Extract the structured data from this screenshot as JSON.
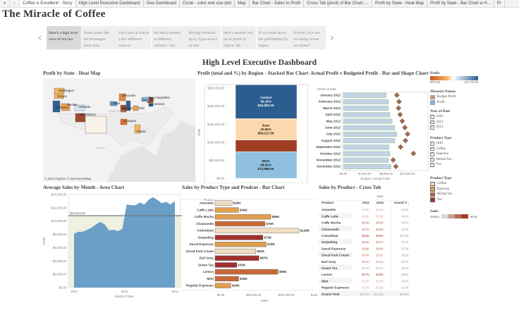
{
  "tabs": [
    "Coffee is Excellent! - Story",
    "High Level Executive Dashboard",
    "Geo Dashboard",
    "Circle - color and size plot",
    "Map",
    "Bar Chart - Sales to Profit",
    "Cross Tab (pivot) of Bar Chart -...",
    "Profit by State - Heat Map",
    "Profit by State - Bar Chart w H...",
    "Pr"
  ],
  "story_title": "The Miracle of Coffee",
  "story_points": [
    "Here's a high level view of our hot",
    "Some states like hot beverages more than",
    "Let's look at that in a few different ways to",
    "We sell a number of different varieties - but",
    "Rolling Products up by Type  shows us that",
    "Here's another roll up of profit by region. We",
    "If we break down the profitability by region",
    "Overall, how are we doing verses our plans?"
  ],
  "dashboard_title": "High Level Executive Dashboard",
  "map": {
    "title": "Profit by State - Heat Map",
    "attribution": "© 2025 Mapbox  © OpenStreetMap",
    "country_labels": [
      "United States",
      "Mexico"
    ],
    "states": [
      {
        "name": "Washington",
        "color": "#f5b560"
      },
      {
        "name": "Oregon",
        "color": "#f5b560"
      },
      {
        "name": "California",
        "color": "#2e5f8f"
      },
      {
        "name": "Nevada",
        "color": "#f0a050"
      },
      {
        "name": "Colorado",
        "color": "#d6e8f5"
      },
      {
        "name": "New Mexico",
        "color": "#a04a30"
      },
      {
        "name": "Iowa",
        "color": "#5f95c8"
      },
      {
        "name": "Wisconsin",
        "color": "#e08a40"
      },
      {
        "name": "Missouri",
        "color": "#a04a30"
      },
      {
        "name": "Illinois",
        "color": "#2e5f8f"
      },
      {
        "name": "Ohio",
        "color": "#f0a050"
      },
      {
        "name": "Louisiana",
        "color": "#e07030"
      },
      {
        "name": "Florida",
        "color": "#f5b560"
      },
      {
        "name": "Texas",
        "color": "#faf1e8"
      },
      {
        "name": "New Hampshire",
        "color": "#a04a30"
      },
      {
        "name": "New York",
        "color": "#8fbde0"
      },
      {
        "name": "Connecticut",
        "color": "#2e5f8f"
      }
    ]
  },
  "legends": {
    "profit": {
      "title": "Profit",
      "min": "$799.00",
      "max": "$31,785.00"
    },
    "measure_names": {
      "title": "Measure Names",
      "items": [
        {
          "label": "Budget Profit",
          "color": "#b89a88"
        },
        {
          "label": "Profit",
          "color": "#8aaed4"
        }
      ]
    },
    "year_filter": {
      "title": "Year of Date",
      "items": [
        "(All)",
        "2012",
        "2013"
      ]
    },
    "product_type_filter": {
      "title": "Product Type",
      "items": [
        "(All)",
        "Coffee",
        "Espresso",
        "Herbal Tea",
        "Tea"
      ]
    },
    "product_type_colors": {
      "title": "Product Type",
      "items": [
        {
          "label": "Coffee",
          "color": "#f0dcc0"
        },
        {
          "label": "Espresso",
          "color": "#e0a050"
        },
        {
          "label": "Herbal Tea",
          "color": "#c8693a"
        },
        {
          "label": "Tea",
          "color": "#a0322d"
        }
      ]
    },
    "sales": {
      "title": "Sales",
      "min": "($30K)",
      "max": "$65K"
    }
  },
  "chart_data": [
    {
      "type": "bar",
      "title": "Profit (total and %) by Region - Stacked Bar Chart",
      "ylabel": "Profit",
      "ylim": [
        0,
        260000
      ],
      "yticks": [
        "$0.00",
        "$50,000.00",
        "$100,000.00",
        "$150,000.00",
        "$200,000.00",
        "$250,000.00"
      ],
      "series": [
        {
          "name": "West",
          "value": 73996,
          "pct": "28.51%",
          "label": "$73,996.00",
          "color": "#8fc0df"
        },
        {
          "name": "South",
          "value": 32485,
          "pct": "",
          "label": "",
          "color": "#a03c22"
        },
        {
          "name": "East",
          "value": 59217,
          "pct": "22.82%",
          "label": "$59,217.00",
          "color": "#fdd8ae"
        },
        {
          "name": "Central",
          "value": 93852,
          "pct": "36.16%",
          "label": "$93,852.00",
          "color": "#2b5d8e"
        }
      ]
    },
    {
      "type": "bar",
      "title": "Actual Profit v Budgeted Profit - Bar and Shape Chart",
      "header": "Month of Date",
      "xlabel": "Budget v Actual Profit",
      "xlim": [
        0,
        13500
      ],
      "xticks": [
        "$0.00",
        "$4,000.00",
        "$8,000.00",
        "$12,000.00"
      ],
      "categories": [
        "January 2012",
        "February 2012",
        "March 2012",
        "April 2012",
        "May 2012",
        "June 2012",
        "July 2012",
        "August 2012",
        "September 2012",
        "October 2012",
        "November 2012",
        "December 2012"
      ],
      "series": [
        {
          "name": "Profit",
          "values": [
            8000,
            8400,
            8400,
            8700,
            9100,
            9600,
            10000,
            9600,
            8500,
            8700,
            8400,
            8900
          ]
        },
        {
          "name": "Budget Profit",
          "values": [
            10000,
            10400,
            10300,
            10600,
            11000,
            11500,
            12000,
            11600,
            10700,
            13100,
            9300,
            9800
          ]
        }
      ]
    },
    {
      "type": "area",
      "title": "Average Sales by Month - Area Chart",
      "xlabel": "Month of Date",
      "ylabel": "Profit",
      "ylim": [
        0,
        14000
      ],
      "yticks": [
        "$0.00",
        "$2,000.00",
        "$4,000.00",
        "$6,000.00",
        "$8,000.00",
        "$10,000.00",
        "$12,000.00",
        "$14,000.00"
      ],
      "xticks": [
        "2012",
        "2013",
        "2014"
      ],
      "reference_line": {
        "value": 10814.26,
        "label": "$10,814.26"
      },
      "values": [
        8100,
        8400,
        8400,
        8700,
        9000,
        9500,
        9900,
        9500,
        8600,
        8700,
        8500,
        8800,
        12500,
        12400,
        12400,
        12800,
        12500,
        13200,
        13600,
        13200,
        12700,
        12900,
        12500,
        13000
      ]
    },
    {
      "type": "bar",
      "title": "Sales by Product Type and Prodcut - Bar Chart",
      "header": "Product",
      "xlabel": "Sales",
      "xlim": [
        0,
        155000
      ],
      "xticks": [
        "$0.00",
        "$50,000.00",
        "$100,000.00",
        "$150,000.00"
      ],
      "categories": [
        "Amaretto",
        "Caffe Latte",
        "Caffe Mocha",
        "Chamomile",
        "Colombian",
        "Darjeeling",
        "Decaf Espresso",
        "Decaf Irish Cream",
        "Earl Grey",
        "Green Tea",
        "Lemon",
        "Mint",
        "Regular Espresso"
      ],
      "product_types": [
        "Coffee",
        "Espresso",
        "Espresso",
        "Herbal Tea",
        "Coffee",
        "Tea",
        "Espresso",
        "Coffee",
        "Tea",
        "Tea",
        "Herbal Tea",
        "Herbal Tea",
        "Espresso"
      ],
      "values": [
        26000,
        36000,
        85000,
        76000,
        128000,
        73000,
        78000,
        62000,
        67000,
        33000,
        96000,
        36000,
        24000
      ],
      "labels": [
        "$26K",
        "$36K",
        "$85K",
        "$76K",
        "$128K",
        "$73K",
        "$78K",
        "$62K",
        "$67K",
        "$33K",
        "$96K",
        "$36K",
        "$24K"
      ]
    },
    {
      "type": "table",
      "title": "Sales by Product - Cross Tab",
      "column_group": "Date",
      "columns": [
        "Product",
        "2012",
        "2013",
        "Grand T..."
      ],
      "rows": [
        [
          "Amaretto",
          "$13K",
          "$13K",
          "$26K"
        ],
        [
          "Caffe Latte",
          "$18K",
          "$18K",
          "$36K"
        ],
        [
          "Caffe Mocha",
          "$42K",
          "$43K",
          "$85K"
        ],
        [
          "Chamomile",
          "$37K",
          "$39K",
          "$76K"
        ],
        [
          "Colombian",
          "$63K",
          "$65K",
          "$128K"
        ],
        [
          "Darjeeling",
          "$36K",
          "$37K",
          "$73K"
        ],
        [
          "Decaf Espresso",
          "$38K",
          "$40K",
          "$78K"
        ],
        [
          "Decaf Irish Cream",
          "$30K",
          "$32K",
          "$62K"
        ],
        [
          "Earl Grey",
          "$33K",
          "$34K",
          "$67K"
        ],
        [
          "Green Tea",
          "$16K",
          "$17K",
          "$33K"
        ],
        [
          "Lemon",
          "$47K",
          "$49K",
          "$96K"
        ],
        [
          "Mint",
          "$17K",
          "$18K",
          "$36K"
        ],
        [
          "Regular Espresso",
          "$12K",
          "$12K",
          "$24K"
        ]
      ],
      "total": [
        "Grand Total",
        "$401K",
        "$419K",
        "$820K"
      ]
    }
  ]
}
